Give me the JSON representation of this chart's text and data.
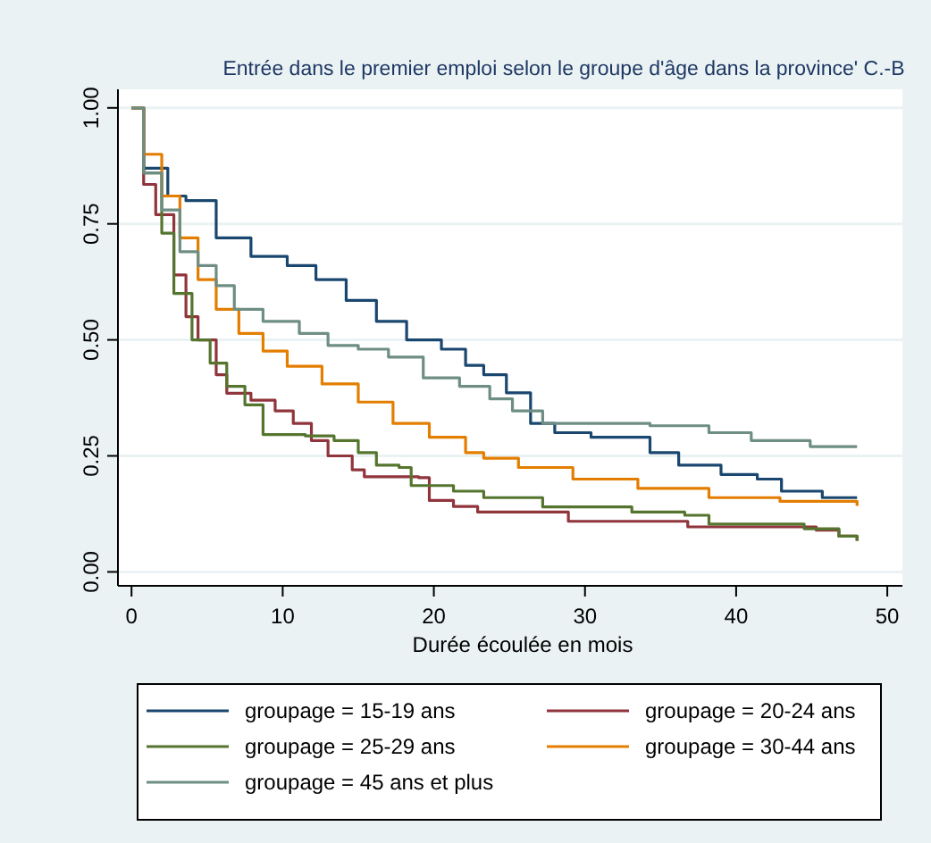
{
  "chart_data": {
    "type": "step",
    "title": "Entrée dans le premier emploi selon le groupe d'âge dans la province' C.-B",
    "xlabel": "Durée écoulée en mois",
    "xlim": [
      -0.9,
      51
    ],
    "xticks": [
      0,
      10,
      20,
      30,
      40,
      50
    ],
    "ylim": [
      -0.03,
      1.04
    ],
    "yticks": [
      {
        "value": 0,
        "label": "0.00"
      },
      {
        "value": 0.25,
        "label": "0.25"
      },
      {
        "value": 0.5,
        "label": "0.50"
      },
      {
        "value": 0.75,
        "label": "0.75"
      },
      {
        "value": 1,
        "label": "1.00"
      }
    ],
    "grid": "y",
    "legend": "bottom",
    "line_style": "solid",
    "marker": "none",
    "series": [
      {
        "name": "groupage = 15-19 ans",
        "color": "#1a476f",
        "x": [
          0,
          0.8,
          2.4,
          3.6,
          5.6,
          7.9,
          10.3,
          12.2,
          14.2,
          16.2,
          18.2,
          20.5,
          22.1,
          23.3,
          24.8,
          26.4,
          28,
          30.4,
          34.3,
          36.2,
          39,
          41.4,
          43,
          45.7,
          48
        ],
        "values": [
          1,
          0.87,
          0.81,
          0.8,
          0.72,
          0.68,
          0.66,
          0.63,
          0.585,
          0.54,
          0.5,
          0.48,
          0.445,
          0.425,
          0.386,
          0.32,
          0.3,
          0.29,
          0.257,
          0.23,
          0.21,
          0.2,
          0.174,
          0.16,
          0.16
        ]
      },
      {
        "name": "groupage = 20-24 ans",
        "color": "#90353b",
        "x": [
          0,
          0.8,
          1.6,
          2.8,
          3.6,
          4.4,
          5.6,
          6.3,
          7.9,
          9.5,
          10.7,
          11.9,
          13,
          14.6,
          15.4,
          19,
          19.7,
          21.3,
          22.9,
          28.9,
          36.8,
          45.3,
          46.8,
          48
        ],
        "values": [
          1,
          0.835,
          0.77,
          0.64,
          0.55,
          0.5,
          0.425,
          0.385,
          0.37,
          0.347,
          0.32,
          0.283,
          0.25,
          0.22,
          0.205,
          0.203,
          0.154,
          0.141,
          0.129,
          0.109,
          0.097,
          0.09,
          0.077,
          0.067
        ]
      },
      {
        "name": "groupage = 25-29 ans",
        "color": "#55752f",
        "x": [
          0,
          0.8,
          2,
          2.8,
          4,
          5.2,
          6.3,
          7.5,
          8.7,
          11.5,
          13.4,
          15,
          16.2,
          17.7,
          18.5,
          21.3,
          23.3,
          27.2,
          33.1,
          36.6,
          38.2,
          44.5,
          46.8,
          48
        ],
        "values": [
          1,
          0.86,
          0.73,
          0.6,
          0.5,
          0.45,
          0.4,
          0.36,
          0.296,
          0.293,
          0.283,
          0.257,
          0.23,
          0.225,
          0.186,
          0.174,
          0.16,
          0.14,
          0.129,
          0.122,
          0.103,
          0.093,
          0.077,
          0.067
        ]
      },
      {
        "name": "groupage = 30-44 ans",
        "color": "#e37e00",
        "x": [
          0,
          0.8,
          2,
          3.2,
          4.4,
          5.6,
          7.1,
          8.7,
          10.3,
          12.6,
          15,
          17.3,
          19.7,
          22.1,
          23.3,
          25.6,
          29.2,
          33.5,
          38.2,
          42.9,
          48
        ],
        "values": [
          1,
          0.9,
          0.81,
          0.72,
          0.63,
          0.566,
          0.514,
          0.476,
          0.443,
          0.405,
          0.366,
          0.32,
          0.29,
          0.257,
          0.245,
          0.225,
          0.2,
          0.18,
          0.16,
          0.152,
          0.142
        ]
      },
      {
        "name": "groupage = 45 ans et plus",
        "color": "#6e8e84",
        "x": [
          0,
          0.8,
          2,
          3.2,
          4.4,
          5.6,
          6.8,
          8.7,
          11.1,
          13,
          15,
          17,
          19.3,
          21.7,
          23.7,
          25.2,
          27.2,
          34.3,
          38.2,
          41,
          44.9,
          48
        ],
        "values": [
          1,
          0.86,
          0.78,
          0.69,
          0.66,
          0.617,
          0.566,
          0.54,
          0.514,
          0.488,
          0.48,
          0.463,
          0.418,
          0.4,
          0.373,
          0.347,
          0.32,
          0.315,
          0.3,
          0.283,
          0.27,
          0.27
        ]
      }
    ]
  }
}
